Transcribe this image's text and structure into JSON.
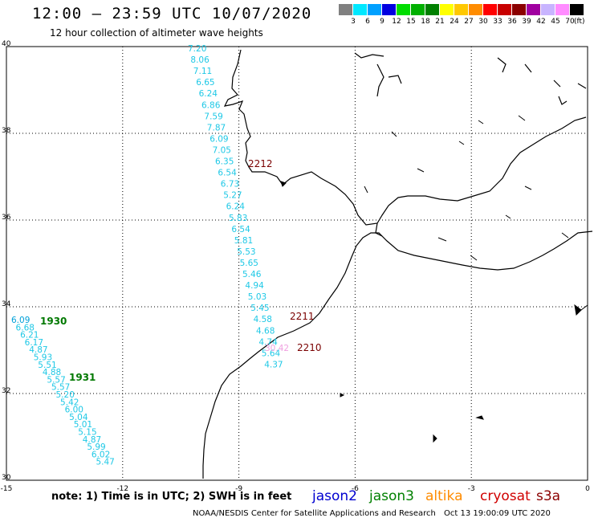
{
  "title": "12:00 – 23:59 UTC 10/07/2020",
  "subtitle": "12 hour collection of altimeter wave heights",
  "legend": {
    "unit": "(ft)",
    "bins": [
      {
        "label": "3",
        "color": "#808080"
      },
      {
        "label": "6",
        "color": "#00e8ff"
      },
      {
        "label": "9",
        "color": "#00a0ff"
      },
      {
        "label": "12",
        "color": "#0000e0"
      },
      {
        "label": "15",
        "color": "#00dd00"
      },
      {
        "label": "18",
        "color": "#00b000"
      },
      {
        "label": "21",
        "color": "#008000"
      },
      {
        "label": "24",
        "color": "#ffff00"
      },
      {
        "label": "27",
        "color": "#ffc800"
      },
      {
        "label": "30",
        "color": "#ff8c00"
      },
      {
        "label": "33",
        "color": "#ff0000"
      },
      {
        "label": "36",
        "color": "#c80000"
      },
      {
        "label": "39",
        "color": "#8b0000"
      },
      {
        "label": "42",
        "color": "#a000a0"
      },
      {
        "label": "45",
        "color": "#c8b4ff"
      },
      {
        "label": "70",
        "color": "#ff8cff"
      },
      {
        "label": "",
        "color": "#000000"
      }
    ]
  },
  "axes": {
    "lon_ticks": [
      "-15",
      "-12",
      "-9",
      "-6",
      "-3",
      "0"
    ],
    "lat_ticks": [
      "40",
      "38",
      "36",
      "34",
      "32",
      "30"
    ]
  },
  "track_east": {
    "color": "#1ec8e6",
    "values": [
      "7.20",
      "8.06",
      "7.11",
      "6.65",
      "6.24",
      "6.86",
      "7.59",
      "7.87",
      "6.09",
      "7.05",
      "6.35",
      "6.54",
      "6.73",
      "5.27",
      "6.24",
      "5.83",
      "6.54",
      "5.81",
      "5.53",
      "5.65",
      "5.46",
      "4.94",
      "5.03",
      "5.45",
      "4.58",
      "4.68",
      "4.74",
      "5.64",
      "4.37"
    ],
    "last_value": "30.42",
    "last_color": "#f0a0e0",
    "time_labels": [
      {
        "text": "2212",
        "color": "#7a0000"
      },
      {
        "text": "2211",
        "color": "#7a0000"
      },
      {
        "text": "2210",
        "color": "#7a0000"
      }
    ]
  },
  "track_west": {
    "color": "#1ec8e6",
    "first_color": "#00a0d8",
    "values": [
      "6.09",
      "6.68",
      "6.21",
      "6.17",
      "4.87",
      "5.93",
      "5.51",
      "4.88",
      "5.57",
      "5.57",
      "5.20",
      "5.42",
      "6.00",
      "5.04",
      "5.01",
      "5.15",
      "4.87",
      "5.99",
      "6.02",
      "5.47"
    ],
    "time_labels": [
      {
        "text": "1930",
        "color": "#007800"
      },
      {
        "text": "1931",
        "color": "#007800"
      }
    ]
  },
  "footer": {
    "note": "note: 1) Time is in UTC; 2) SWH is in feet",
    "satellites": [
      {
        "name": "jason2",
        "color": "#0000d0"
      },
      {
        "name": "jason3",
        "color": "#008000"
      },
      {
        "name": "altika",
        "color": "#ff8c00"
      },
      {
        "name": "cryosat",
        "color": "#d00000"
      },
      {
        "name": "s3a",
        "color": "#8b0000"
      }
    ],
    "credit": "NOAA/NESDIS Center for Satellite Applications and Research",
    "timestamp": "Oct 13 19:00:09 UTC 2020"
  }
}
